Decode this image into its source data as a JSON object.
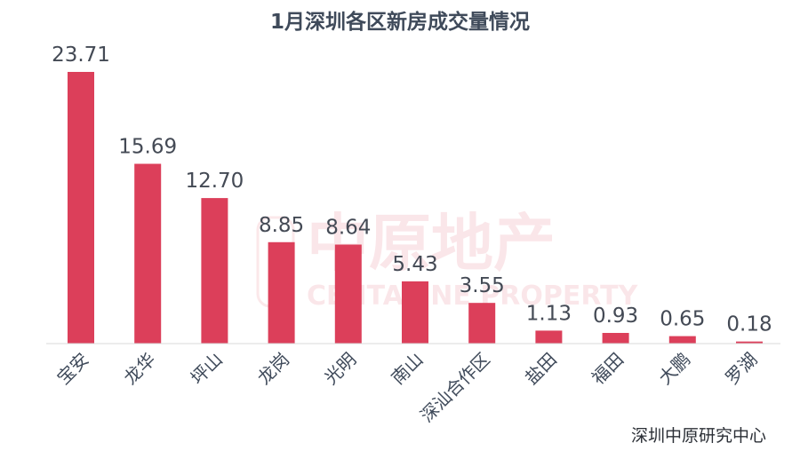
{
  "chart_data": {
    "type": "bar",
    "title": "1月深圳各区新房成交量情况",
    "categories": [
      "宝安",
      "龙华",
      "坪山",
      "龙岗",
      "光明",
      "南山",
      "深汕合作区",
      "盐田",
      "福田",
      "大鹏",
      "罗湖"
    ],
    "values": [
      23.71,
      15.69,
      12.7,
      8.85,
      8.64,
      5.43,
      3.55,
      1.13,
      0.93,
      0.65,
      0.18
    ],
    "value_labels": [
      "23.71",
      "15.69",
      "12.70",
      "8.85",
      "8.64",
      "5.43",
      "3.55",
      "1.13",
      "0.93",
      "0.65",
      "0.18"
    ],
    "xlabel": "",
    "ylabel": "",
    "ylim": [
      0,
      23.71
    ],
    "grid": false,
    "legend": "none",
    "bar_color": "#dc3f5a"
  },
  "source": "深圳中原研究中心",
  "watermark": {
    "cn": "中原地产",
    "en": "CENTALINE PROPERTY",
    "seal": "中原"
  }
}
